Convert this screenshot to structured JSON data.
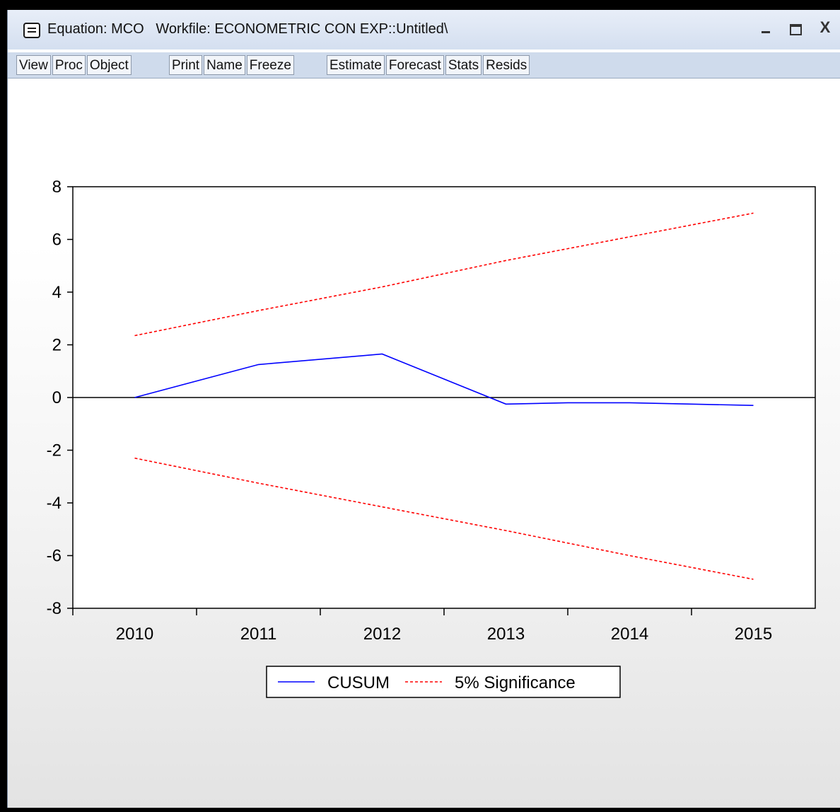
{
  "window": {
    "title": "Equation: MCO   Workfile: ECONOMETRIC CON EXP::Untitled\\",
    "controls": {
      "minimize": "_",
      "close": "X"
    }
  },
  "toolbar": {
    "group1": [
      "View",
      "Proc",
      "Object"
    ],
    "group2": [
      "Print",
      "Name",
      "Freeze"
    ],
    "group3": [
      "Estimate",
      "Forecast",
      "Stats",
      "Resids"
    ]
  },
  "chart_data": {
    "type": "line",
    "x": [
      2010,
      2011,
      2012,
      2013,
      2014,
      2015
    ],
    "xticks": [
      "2010",
      "2011",
      "2012",
      "2013",
      "2014",
      "2015"
    ],
    "xlim": [
      2009.5,
      2015.5
    ],
    "ylim": [
      -8,
      8
    ],
    "yticks": [
      "8",
      "6",
      "4",
      "2",
      "0",
      "-2",
      "-4",
      "-6",
      "-8"
    ],
    "grid": false,
    "legend_position": "bottom-center",
    "series": [
      {
        "name": "CUSUM",
        "color": "#0000ff",
        "dashed": false,
        "x": [
          2010,
          2011,
          2012,
          2013,
          2013.5,
          2014,
          2014.5,
          2015
        ],
        "y": [
          0.0,
          1.25,
          1.65,
          -0.25,
          -0.2,
          -0.2,
          -0.25,
          -0.3
        ]
      },
      {
        "name": "5% Significance",
        "color": "#ff0000",
        "dashed": true,
        "x": [
          2010,
          2011,
          2012,
          2013,
          2014,
          2015
        ],
        "y": [
          2.35,
          3.3,
          4.2,
          5.2,
          6.1,
          7.0
        ]
      },
      {
        "name": "",
        "color": "#ff0000",
        "dashed": true,
        "x": [
          2010,
          2011,
          2012,
          2013,
          2014,
          2015
        ],
        "y": [
          -2.3,
          -3.25,
          -4.15,
          -5.05,
          -6.0,
          -6.9
        ]
      }
    ]
  }
}
